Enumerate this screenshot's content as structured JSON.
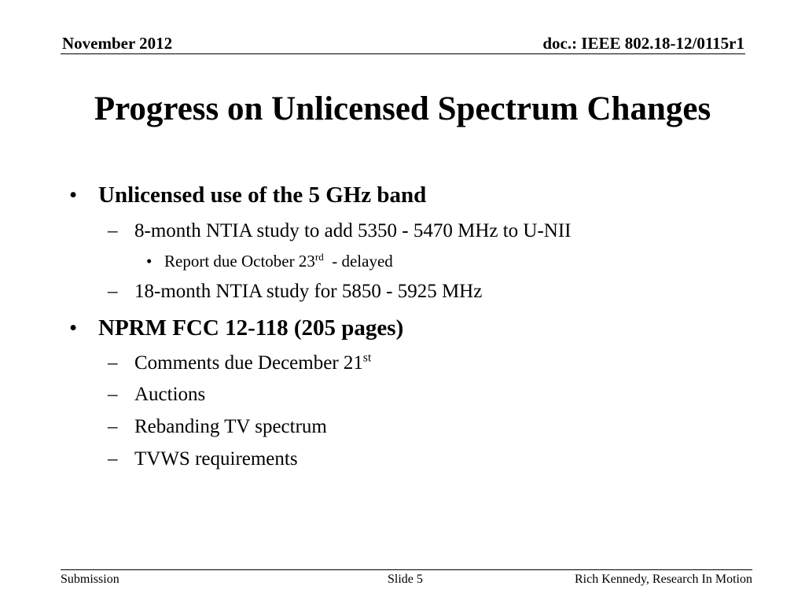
{
  "header": {
    "date": "November 2012",
    "doc_id": "doc.: IEEE 802.18-12/0115r1"
  },
  "title": "Progress on Unlicensed Spectrum Changes",
  "bullets": {
    "marker_l1": "•",
    "marker_l2": "–",
    "marker_l3": "•",
    "b1": {
      "text": "Unlicensed use of the 5 GHz band",
      "sub1": "8-month NTIA study to add 5350 - 5470 MHz to U-NII",
      "sub1_item_pre": "Report due October 23",
      "sub1_item_sup": "rd",
      "sub1_item_post": "  - delayed",
      "sub2": "18-month NTIA study for 5850 - 5925 MHz"
    },
    "b2": {
      "text": "NPRM FCC 12-118 (205 pages)",
      "sub1_pre": "Comments due December 21",
      "sub1_sup": "st",
      "sub2": "Auctions",
      "sub3": "Rebanding TV spectrum",
      "sub4": "TVWS requirements"
    }
  },
  "footer": {
    "left": "Submission",
    "center": "Slide 5",
    "right": "Rich Kennedy, Research In Motion"
  }
}
